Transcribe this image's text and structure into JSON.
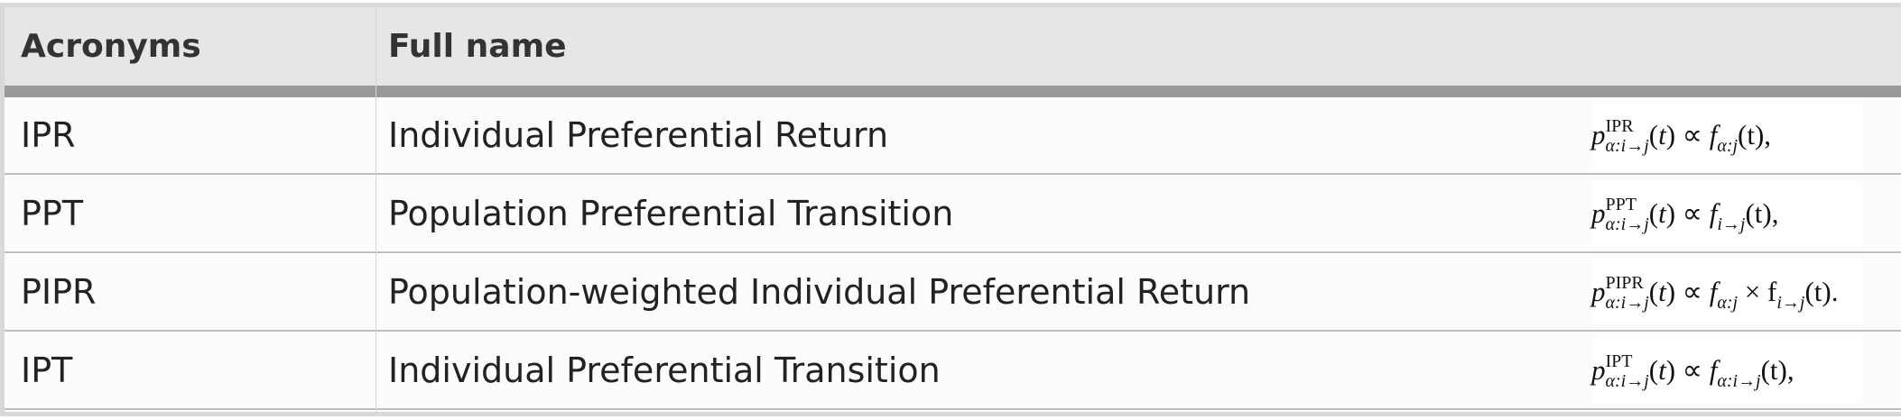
{
  "table": {
    "headers": [
      "Acronyms",
      "Full name"
    ],
    "rows": [
      {
        "acronym": "IPR",
        "full_name": "Individual Preferential Return",
        "formula": {
          "sup": "IPR",
          "sub": "α:i→j",
          "rhs_sub": "α:j",
          "rhs_extra": "",
          "rhs_extra_sub": "",
          "end": "(t),"
        }
      },
      {
        "acronym": "PPT",
        "full_name": "Population Preferential Transition",
        "formula": {
          "sup": "PPT",
          "sub": "α:i→j",
          "rhs_sub": "i→j",
          "rhs_extra": "",
          "rhs_extra_sub": "",
          "end": "(t),"
        }
      },
      {
        "acronym": "PIPR",
        "full_name": "Population-weighted Individual Preferential Return",
        "formula": {
          "sup": "PIPR",
          "sub": "α:i→j",
          "rhs_sub": "α:j",
          "rhs_extra": " × f",
          "rhs_extra_sub": "i→j",
          "end": "(t)."
        }
      },
      {
        "acronym": "IPT",
        "full_name": "Individual Preferential Transition",
        "formula": {
          "sup": "IPT",
          "sub": "α:i→j",
          "rhs_sub": "α:i→j",
          "rhs_extra": "",
          "rhs_extra_sub": "",
          "end": "(t),"
        }
      }
    ]
  }
}
